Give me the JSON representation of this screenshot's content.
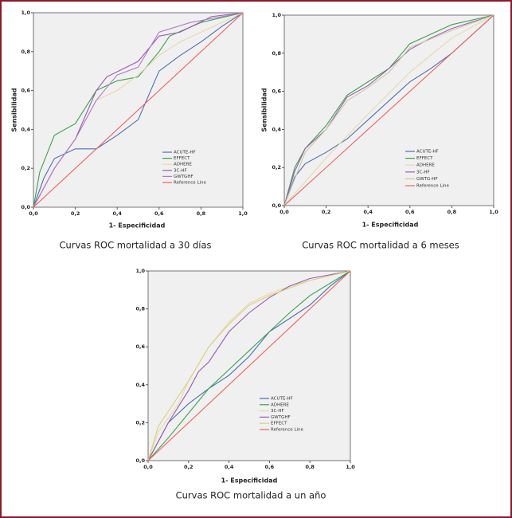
{
  "chart_data": [
    {
      "type": "line",
      "caption": "Curvas ROC mortalidad a 30 días",
      "xlabel": "1- Especificidad",
      "ylabel": "Sensibilidad",
      "xlim": [
        0,
        1
      ],
      "ylim": [
        0,
        1
      ],
      "xticks": [
        {
          "value": 0,
          "label": "0,0"
        },
        {
          "value": 0.2,
          "label": "0,2"
        },
        {
          "value": 0.4,
          "label": "0,4"
        },
        {
          "value": 0.6,
          "label": "0,6"
        },
        {
          "value": 0.8,
          "label": "0,8"
        },
        {
          "value": 1,
          "label": "1,0"
        }
      ],
      "yticks": [
        {
          "value": 0,
          "label": "0,0"
        },
        {
          "value": 0.2,
          "label": "0,2"
        },
        {
          "value": 0.4,
          "label": "0,4"
        },
        {
          "value": 0.6,
          "label": "0,6"
        },
        {
          "value": 0.8,
          "label": "0,8"
        },
        {
          "value": 1,
          "label": "1,0"
        }
      ],
      "series": [
        {
          "name": "ACUTE-HF",
          "color": "#4a6fb5",
          "x": [
            0,
            0.05,
            0.1,
            0.2,
            0.3,
            0.4,
            0.5,
            0.6,
            0.7,
            0.8,
            0.9,
            1
          ],
          "values": [
            0,
            0.15,
            0.25,
            0.3,
            0.3,
            0.37,
            0.45,
            0.7,
            0.78,
            0.85,
            0.93,
            1
          ]
        },
        {
          "name": "EFFECT",
          "color": "#3aa34a",
          "x": [
            0,
            0.03,
            0.1,
            0.2,
            0.3,
            0.4,
            0.5,
            0.6,
            0.65,
            0.8,
            1
          ],
          "values": [
            0,
            0.18,
            0.37,
            0.43,
            0.6,
            0.65,
            0.67,
            0.8,
            0.88,
            0.95,
            1
          ]
        },
        {
          "name": "ADHERE",
          "color": "#e6d9a8",
          "x": [
            0,
            0.1,
            0.2,
            0.3,
            0.4,
            0.5,
            0.6,
            0.7,
            0.8,
            1
          ],
          "values": [
            0,
            0.2,
            0.35,
            0.55,
            0.6,
            0.68,
            0.78,
            0.85,
            0.9,
            1
          ]
        },
        {
          "name": "3C-HF",
          "color": "#9b59b6",
          "x": [
            0,
            0.05,
            0.1,
            0.2,
            0.3,
            0.35,
            0.5,
            0.6,
            0.7,
            0.85,
            1
          ],
          "values": [
            0,
            0.1,
            0.2,
            0.35,
            0.6,
            0.67,
            0.75,
            0.88,
            0.9,
            0.98,
            1
          ]
        },
        {
          "name": "GWTGHF",
          "color": "#b07cc6",
          "x": [
            0,
            0.1,
            0.2,
            0.3,
            0.4,
            0.5,
            0.6,
            0.75,
            1
          ],
          "values": [
            0,
            0.2,
            0.35,
            0.55,
            0.68,
            0.72,
            0.9,
            0.95,
            1
          ]
        },
        {
          "name": "Reference Line",
          "color": "#f0605a",
          "x": [
            0,
            1
          ],
          "values": [
            0,
            1
          ]
        }
      ]
    },
    {
      "type": "line",
      "caption": "Curvas ROC mortalidad a 6 meses",
      "xlabel": "1- Especificidad",
      "ylabel": "Sensibilidad",
      "xlim": [
        0,
        1
      ],
      "ylim": [
        0,
        1
      ],
      "xticks": [
        {
          "value": 0,
          "label": "0,0"
        },
        {
          "value": 0.2,
          "label": "0,2"
        },
        {
          "value": 0.4,
          "label": "0,4"
        },
        {
          "value": 0.6,
          "label": "0,6"
        },
        {
          "value": 0.8,
          "label": "0,8"
        },
        {
          "value": 1,
          "label": "1,0"
        }
      ],
      "yticks": [
        {
          "value": 0,
          "label": "0,0"
        },
        {
          "value": 0.2,
          "label": "0,2"
        },
        {
          "value": 0.4,
          "label": "0,4"
        },
        {
          "value": 0.6,
          "label": "0,6"
        },
        {
          "value": 0.8,
          "label": "0,8"
        },
        {
          "value": 1,
          "label": "1,0"
        }
      ],
      "series": [
        {
          "name": "ACUTE-HF",
          "color": "#4a6fb5",
          "x": [
            0,
            0.05,
            0.1,
            0.2,
            0.3,
            0.4,
            0.5,
            0.6,
            0.7,
            0.8,
            0.9,
            1
          ],
          "values": [
            0,
            0.15,
            0.22,
            0.28,
            0.35,
            0.45,
            0.55,
            0.65,
            0.72,
            0.8,
            0.9,
            1
          ]
        },
        {
          "name": "EFFECT",
          "color": "#3aa34a",
          "x": [
            0,
            0.05,
            0.1,
            0.2,
            0.3,
            0.4,
            0.5,
            0.6,
            0.7,
            0.8,
            1
          ],
          "values": [
            0,
            0.2,
            0.3,
            0.42,
            0.58,
            0.65,
            0.72,
            0.85,
            0.9,
            0.95,
            1
          ]
        },
        {
          "name": "ADHERE",
          "color": "#e6d9a8",
          "x": [
            0,
            0.2,
            0.4,
            0.6,
            0.8,
            1
          ],
          "values": [
            0,
            0.25,
            0.48,
            0.7,
            0.88,
            1
          ]
        },
        {
          "name": "3C-HF",
          "color": "#9b59b6",
          "x": [
            0,
            0.05,
            0.1,
            0.2,
            0.3,
            0.4,
            0.5,
            0.6,
            0.7,
            0.8,
            1
          ],
          "values": [
            0,
            0.18,
            0.3,
            0.4,
            0.57,
            0.63,
            0.72,
            0.82,
            0.88,
            0.93,
            1
          ]
        },
        {
          "name": "GWTG-HF",
          "color": "#c9c9a0",
          "x": [
            0,
            0.1,
            0.2,
            0.3,
            0.4,
            0.5,
            0.6,
            0.8,
            1
          ],
          "values": [
            0,
            0.28,
            0.4,
            0.55,
            0.62,
            0.7,
            0.83,
            0.92,
            1
          ]
        },
        {
          "name": "Reference Line",
          "color": "#f0605a",
          "x": [
            0,
            1
          ],
          "values": [
            0,
            1
          ]
        }
      ]
    },
    {
      "type": "line",
      "caption": "Curvas ROC mortalidad a un año",
      "xlabel": "1- Especificidad",
      "xlim": [
        0,
        1
      ],
      "ylim": [
        0,
        1
      ],
      "xticks": [
        {
          "value": 0,
          "label": "0,0"
        },
        {
          "value": 0.2,
          "label": "0,2"
        },
        {
          "value": 0.4,
          "label": "0,4"
        },
        {
          "value": 0.6,
          "label": "0,6"
        },
        {
          "value": 0.8,
          "label": "0,8"
        },
        {
          "value": 1,
          "label": "1,0"
        }
      ],
      "yticks": [
        {
          "value": 0,
          "label": "0,0"
        },
        {
          "value": 0.2,
          "label": "0,2"
        },
        {
          "value": 0.4,
          "label": "0,4"
        },
        {
          "value": 0.6,
          "label": "0,6"
        },
        {
          "value": 0.8,
          "label": "0,8"
        },
        {
          "value": 1,
          "label": "1,0"
        }
      ],
      "series": [
        {
          "name": "ACUTE-HF",
          "color": "#4a6fb5",
          "x": [
            0,
            0.1,
            0.2,
            0.3,
            0.4,
            0.5,
            0.6,
            0.7,
            0.8,
            0.9,
            1
          ],
          "values": [
            0,
            0.2,
            0.3,
            0.38,
            0.45,
            0.55,
            0.68,
            0.75,
            0.82,
            0.92,
            1
          ]
        },
        {
          "name": "ADHERE",
          "color": "#3aa34a",
          "x": [
            0,
            0.1,
            0.2,
            0.3,
            0.4,
            0.5,
            0.6,
            0.7,
            0.8,
            1
          ],
          "values": [
            0,
            0.12,
            0.25,
            0.38,
            0.48,
            0.58,
            0.68,
            0.78,
            0.87,
            1
          ]
        },
        {
          "name": "3C-HF",
          "color": "#e6d9a8",
          "x": [
            0,
            0.05,
            0.15,
            0.2,
            0.3,
            0.4,
            0.5,
            0.6,
            0.7,
            0.8,
            1
          ],
          "values": [
            0,
            0.15,
            0.3,
            0.42,
            0.6,
            0.73,
            0.83,
            0.88,
            0.92,
            0.95,
            1
          ]
        },
        {
          "name": "GWTGHF",
          "color": "#9b59b6",
          "x": [
            0,
            0.1,
            0.2,
            0.25,
            0.3,
            0.4,
            0.5,
            0.6,
            0.7,
            0.8,
            1
          ],
          "values": [
            0,
            0.2,
            0.37,
            0.47,
            0.52,
            0.68,
            0.78,
            0.86,
            0.92,
            0.96,
            1
          ]
        },
        {
          "name": "EFFECT",
          "color": "#d8d27a",
          "x": [
            0,
            0.05,
            0.2,
            0.3,
            0.4,
            0.5,
            0.6,
            0.8,
            1
          ],
          "values": [
            0,
            0.18,
            0.42,
            0.6,
            0.72,
            0.82,
            0.87,
            0.95,
            1
          ]
        },
        {
          "name": "Reference Line",
          "color": "#f0605a",
          "x": [
            0,
            1
          ],
          "values": [
            0,
            1
          ]
        }
      ]
    }
  ]
}
